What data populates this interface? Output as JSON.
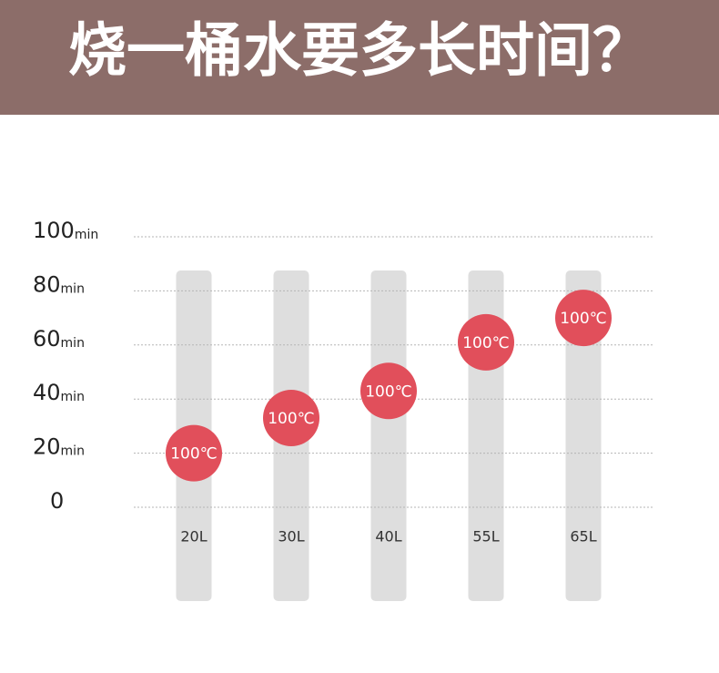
{
  "chart_data": {
    "type": "dot",
    "title": "烧一桶水要多长时间？",
    "categories": [
      "20L",
      "30L",
      "40L",
      "55L",
      "65L"
    ],
    "values": [
      20,
      33,
      43,
      61,
      70
    ],
    "point_label": "100℃",
    "color": "#e14f5b",
    "ylim": [
      0,
      100
    ],
    "yticks": [
      0,
      20,
      40,
      60,
      80,
      100
    ],
    "tick_unit": "min",
    "grid": true
  }
}
